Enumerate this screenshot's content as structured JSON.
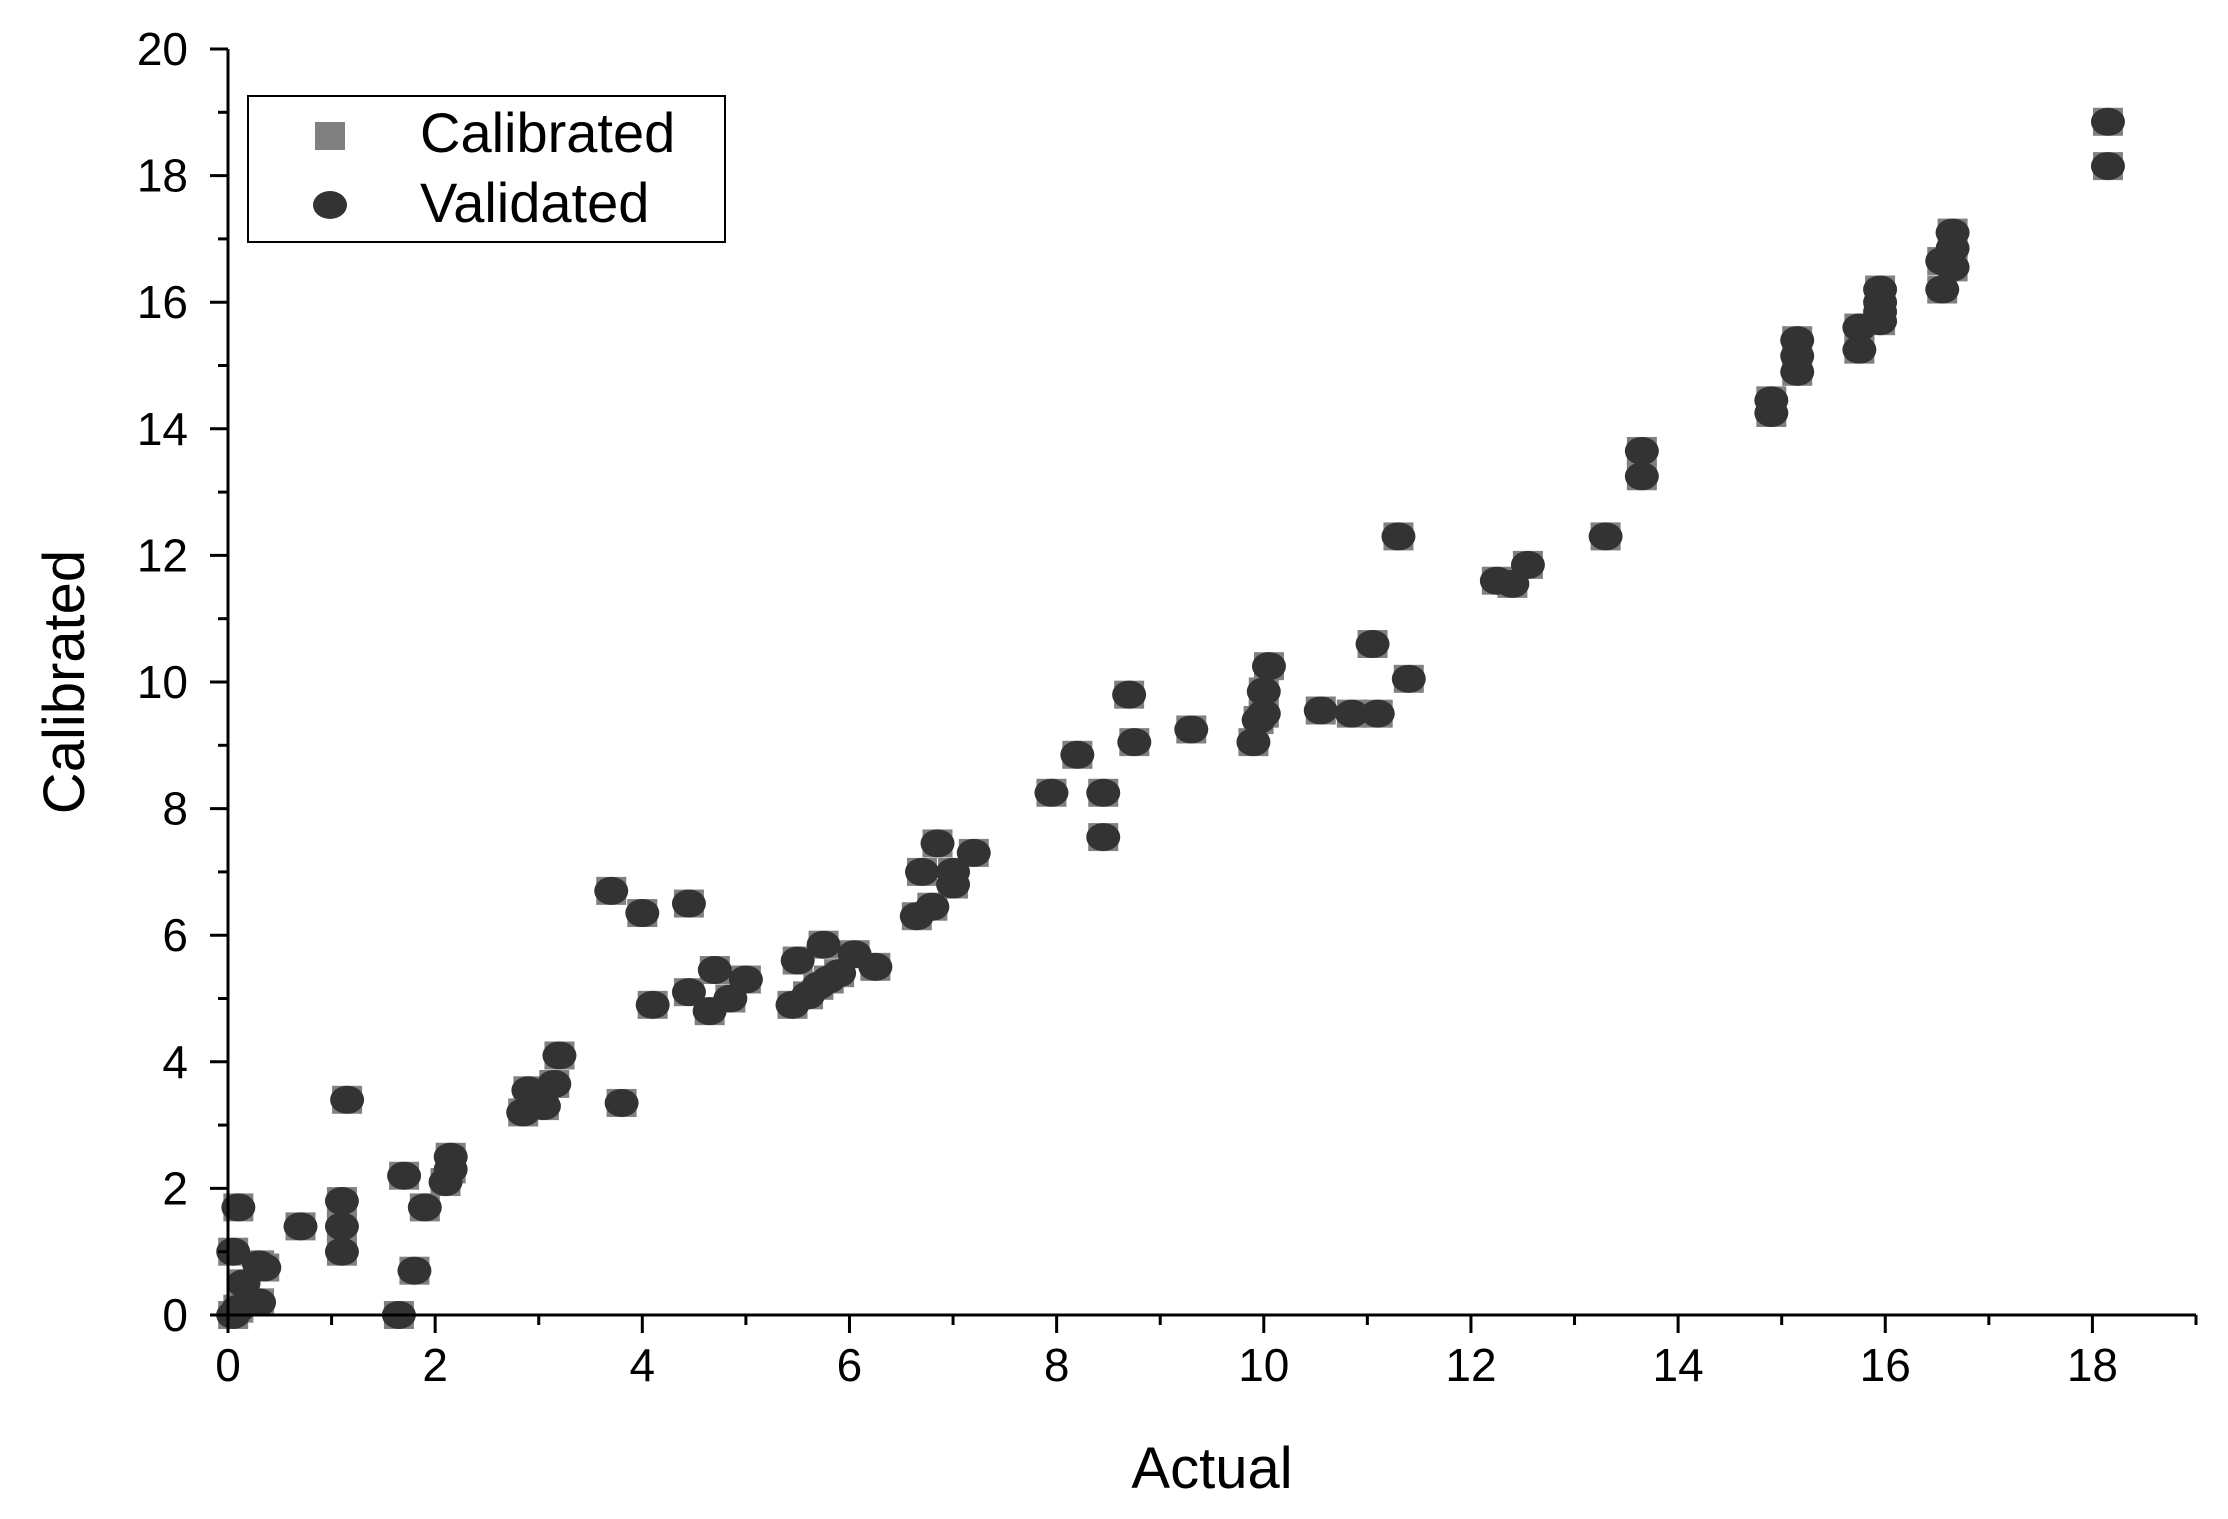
{
  "chart_data": {
    "type": "scatter",
    "xlabel": "Actual",
    "ylabel": "Calibrated",
    "xlim": [
      0,
      19
    ],
    "ylim": [
      0,
      20
    ],
    "x_ticks": [
      0,
      2,
      4,
      6,
      8,
      10,
      12,
      14,
      16,
      18
    ],
    "y_ticks": [
      0,
      2,
      4,
      6,
      8,
      10,
      12,
      14,
      16,
      18,
      20
    ],
    "grid": false,
    "legend_position": "top-left",
    "series": [
      {
        "name": "Calibrated",
        "marker": "square",
        "color": "#808080",
        "points": [
          [
            0.05,
            0.0
          ],
          [
            0.1,
            0.1
          ],
          [
            0.05,
            1.0
          ],
          [
            0.1,
            1.7
          ],
          [
            0.15,
            0.5
          ],
          [
            0.3,
            0.8
          ],
          [
            0.35,
            0.75
          ],
          [
            0.3,
            0.2
          ],
          [
            0.7,
            1.4
          ],
          [
            1.1,
            1.8
          ],
          [
            1.1,
            1.4
          ],
          [
            1.1,
            1.0
          ],
          [
            1.15,
            3.4
          ],
          [
            1.65,
            0.0
          ],
          [
            1.7,
            2.2
          ],
          [
            1.8,
            0.7
          ],
          [
            1.9,
            1.7
          ],
          [
            2.1,
            2.1
          ],
          [
            2.15,
            2.3
          ],
          [
            2.15,
            2.5
          ],
          [
            2.85,
            3.2
          ],
          [
            2.9,
            3.55
          ],
          [
            3.05,
            3.3
          ],
          [
            3.15,
            3.65
          ],
          [
            3.2,
            4.1
          ],
          [
            3.7,
            6.7
          ],
          [
            3.8,
            3.35
          ],
          [
            4.0,
            6.35
          ],
          [
            4.1,
            4.9
          ],
          [
            4.45,
            6.5
          ],
          [
            4.45,
            5.1
          ],
          [
            4.65,
            4.8
          ],
          [
            4.7,
            5.45
          ],
          [
            4.85,
            5.0
          ],
          [
            5.0,
            5.3
          ],
          [
            5.45,
            4.9
          ],
          [
            5.5,
            5.6
          ],
          [
            5.6,
            5.05
          ],
          [
            5.7,
            5.2
          ],
          [
            5.75,
            5.85
          ],
          [
            5.8,
            5.3
          ],
          [
            5.9,
            5.4
          ],
          [
            6.05,
            5.7
          ],
          [
            6.25,
            5.5
          ],
          [
            6.65,
            6.3
          ],
          [
            6.7,
            7.0
          ],
          [
            6.8,
            6.45
          ],
          [
            6.85,
            7.45
          ],
          [
            7.0,
            6.8
          ],
          [
            7.0,
            7.0
          ],
          [
            7.2,
            7.3
          ],
          [
            7.95,
            8.25
          ],
          [
            8.2,
            8.85
          ],
          [
            8.45,
            8.25
          ],
          [
            8.45,
            7.55
          ],
          [
            8.7,
            9.8
          ],
          [
            8.75,
            9.05
          ],
          [
            9.3,
            9.25
          ],
          [
            9.9,
            9.05
          ],
          [
            9.95,
            9.4
          ],
          [
            10.0,
            9.5
          ],
          [
            10.0,
            9.85
          ],
          [
            10.05,
            10.25
          ],
          [
            10.55,
            9.55
          ],
          [
            10.85,
            9.5
          ],
          [
            11.05,
            10.6
          ],
          [
            11.1,
            9.5
          ],
          [
            11.3,
            12.3
          ],
          [
            11.4,
            10.05
          ],
          [
            12.25,
            11.6
          ],
          [
            12.4,
            11.55
          ],
          [
            12.55,
            11.85
          ],
          [
            13.3,
            12.3
          ],
          [
            13.65,
            13.65
          ],
          [
            13.65,
            13.25
          ],
          [
            14.9,
            14.45
          ],
          [
            14.9,
            14.25
          ],
          [
            15.15,
            15.4
          ],
          [
            15.15,
            15.15
          ],
          [
            15.15,
            14.9
          ],
          [
            15.75,
            15.6
          ],
          [
            15.75,
            15.25
          ],
          [
            15.95,
            16.2
          ],
          [
            15.95,
            16.0
          ],
          [
            15.95,
            15.85
          ],
          [
            15.95,
            15.7
          ],
          [
            16.55,
            16.2
          ],
          [
            16.55,
            16.65
          ],
          [
            16.65,
            16.55
          ],
          [
            16.65,
            16.85
          ],
          [
            16.65,
            17.1
          ],
          [
            18.15,
            18.15
          ],
          [
            18.15,
            18.85
          ]
        ]
      },
      {
        "name": "Validated",
        "marker": "circle",
        "color": "#333333",
        "points": [
          [
            0.05,
            0.0
          ],
          [
            0.1,
            0.1
          ],
          [
            0.05,
            1.0
          ],
          [
            0.1,
            1.7
          ],
          [
            0.15,
            0.5
          ],
          [
            0.3,
            0.8
          ],
          [
            0.35,
            0.75
          ],
          [
            0.3,
            0.2
          ],
          [
            0.7,
            1.4
          ],
          [
            1.1,
            1.8
          ],
          [
            1.1,
            1.4
          ],
          [
            1.1,
            1.0
          ],
          [
            1.15,
            3.4
          ],
          [
            1.65,
            0.0
          ],
          [
            1.7,
            2.2
          ],
          [
            1.8,
            0.7
          ],
          [
            1.9,
            1.7
          ],
          [
            2.1,
            2.1
          ],
          [
            2.15,
            2.3
          ],
          [
            2.15,
            2.5
          ],
          [
            2.85,
            3.2
          ],
          [
            2.9,
            3.55
          ],
          [
            3.05,
            3.3
          ],
          [
            3.15,
            3.65
          ],
          [
            3.2,
            4.1
          ],
          [
            3.7,
            6.7
          ],
          [
            3.8,
            3.35
          ],
          [
            4.0,
            6.35
          ],
          [
            4.1,
            4.9
          ],
          [
            4.45,
            6.5
          ],
          [
            4.45,
            5.1
          ],
          [
            4.65,
            4.8
          ],
          [
            4.7,
            5.45
          ],
          [
            4.85,
            5.0
          ],
          [
            5.0,
            5.3
          ],
          [
            5.45,
            4.9
          ],
          [
            5.5,
            5.6
          ],
          [
            5.6,
            5.05
          ],
          [
            5.7,
            5.2
          ],
          [
            5.75,
            5.85
          ],
          [
            5.8,
            5.3
          ],
          [
            5.9,
            5.4
          ],
          [
            6.05,
            5.7
          ],
          [
            6.25,
            5.5
          ],
          [
            6.65,
            6.3
          ],
          [
            6.7,
            7.0
          ],
          [
            6.8,
            6.45
          ],
          [
            6.85,
            7.45
          ],
          [
            7.0,
            6.8
          ],
          [
            7.0,
            7.0
          ],
          [
            7.2,
            7.3
          ],
          [
            7.95,
            8.25
          ],
          [
            8.2,
            8.85
          ],
          [
            8.45,
            8.25
          ],
          [
            8.45,
            7.55
          ],
          [
            8.7,
            9.8
          ],
          [
            8.75,
            9.05
          ],
          [
            9.3,
            9.25
          ],
          [
            9.9,
            9.05
          ],
          [
            9.95,
            9.4
          ],
          [
            10.0,
            9.5
          ],
          [
            10.0,
            9.85
          ],
          [
            10.05,
            10.25
          ],
          [
            10.55,
            9.55
          ],
          [
            10.85,
            9.5
          ],
          [
            11.05,
            10.6
          ],
          [
            11.1,
            9.5
          ],
          [
            11.3,
            12.3
          ],
          [
            11.4,
            10.05
          ],
          [
            12.25,
            11.6
          ],
          [
            12.4,
            11.55
          ],
          [
            12.55,
            11.85
          ],
          [
            13.3,
            12.3
          ],
          [
            13.65,
            13.65
          ],
          [
            13.65,
            13.25
          ],
          [
            14.9,
            14.45
          ],
          [
            14.9,
            14.25
          ],
          [
            15.15,
            15.4
          ],
          [
            15.15,
            15.15
          ],
          [
            15.15,
            14.9
          ],
          [
            15.75,
            15.6
          ],
          [
            15.75,
            15.25
          ],
          [
            15.95,
            16.2
          ],
          [
            15.95,
            16.0
          ],
          [
            15.95,
            15.85
          ],
          [
            15.95,
            15.7
          ],
          [
            16.55,
            16.2
          ],
          [
            16.55,
            16.65
          ],
          [
            16.65,
            16.55
          ],
          [
            16.65,
            16.85
          ],
          [
            16.65,
            17.1
          ],
          [
            18.15,
            18.15
          ],
          [
            18.15,
            18.85
          ]
        ]
      }
    ]
  }
}
